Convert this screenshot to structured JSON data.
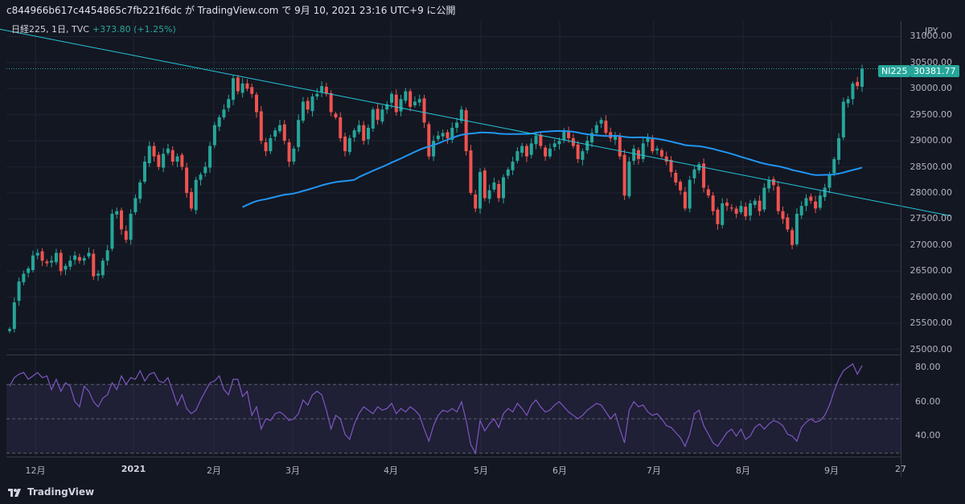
{
  "header": {
    "text": "c844966b617c4454865c7fb221f6dc が TradingView.com で 9月 10, 2021 23:16 UTC+9 に公開"
  },
  "legend": {
    "symbol": "日経225, 1日, TVC",
    "change": "+373.80 (+1.25%)"
  },
  "currency": "JPY",
  "tags": {
    "symbol": "NI225",
    "price": "30381.77"
  },
  "footer": {
    "brand": "TradingView"
  },
  "colors": {
    "up": "#26a69a",
    "down": "#ef5350",
    "ma": "#2196f3",
    "trend": "#26c6da",
    "rsi": "#7e57c2",
    "background": "#131722"
  },
  "chart_data": [
    {
      "type": "candlestick",
      "title": "日経225, 1日, TVC",
      "ylim": [
        24900,
        31300
      ],
      "y_ticks": [
        25000,
        25500,
        26000,
        26500,
        27000,
        27500,
        28000,
        28500,
        29000,
        29500,
        30000,
        30500,
        31000
      ],
      "y_tick_labels": [
        "25000.00",
        "25500.00",
        "26000.00",
        "26500.00",
        "27000.00",
        "27500.00",
        "28000.00",
        "28500.00",
        "29000.00",
        "29500.00",
        "30000.00",
        "30500.00",
        "31000.00"
      ],
      "x_labels": [
        "12月",
        "2021",
        "2月",
        "3月",
        "4月",
        "5月",
        "6月",
        "7月",
        "8月",
        "9月",
        "27"
      ],
      "x_label_pos": [
        44,
        166,
        266,
        364,
        486,
        598,
        696,
        813,
        924,
        1034,
        1120
      ],
      "last_price": 30381.77,
      "candles_close": [
        25390,
        25900,
        26300,
        26450,
        26550,
        26800,
        26850,
        26700,
        26650,
        26700,
        26850,
        26500,
        26600,
        26700,
        26800,
        26700,
        26750,
        26850,
        26400,
        26450,
        26700,
        26900,
        27600,
        27650,
        27300,
        27100,
        27600,
        27900,
        28200,
        28600,
        28900,
        28700,
        28500,
        28750,
        28850,
        28600,
        28700,
        28500,
        28000,
        27700,
        28250,
        28350,
        28500,
        28900,
        29300,
        29450,
        29600,
        29800,
        30200,
        29950,
        30100,
        30000,
        29900,
        29550,
        29000,
        28800,
        29050,
        29200,
        29300,
        29000,
        28600,
        28850,
        29400,
        29750,
        29600,
        29850,
        29900,
        30050,
        29900,
        29550,
        29450,
        29050,
        28800,
        29050,
        29200,
        29300,
        29000,
        29250,
        29600,
        29400,
        29600,
        29700,
        29900,
        29550,
        29800,
        29950,
        29650,
        29750,
        29800,
        29350,
        28700,
        29000,
        29100,
        29150,
        29050,
        29250,
        29350,
        29600,
        28800,
        28000,
        27700,
        28400,
        27900,
        28050,
        28200,
        27900,
        28300,
        28450,
        28600,
        28800,
        28900,
        28700,
        28950,
        29100,
        28900,
        28700,
        28850,
        28950,
        29000,
        29200,
        29050,
        28900,
        28650,
        28800,
        29000,
        29150,
        29300,
        29400,
        29150,
        29050,
        29100,
        28700,
        27950,
        28600,
        28850,
        28650,
        28950,
        29050,
        28800,
        28850,
        28700,
        28600,
        28400,
        28200,
        28050,
        27700,
        28250,
        28450,
        28550,
        28100,
        27950,
        27650,
        27400,
        27800,
        27750,
        27700,
        27600,
        27750,
        27550,
        27800,
        27850,
        27650,
        28100,
        28250,
        28150,
        27650,
        27500,
        27300,
        27000,
        27600,
        27750,
        27900,
        27850,
        27700,
        27950,
        28100,
        28350,
        28650,
        29050,
        29750,
        29800,
        30100,
        30050,
        30381
      ]
    },
    {
      "type": "line",
      "name": "",
      "ylim": [
        28,
        87
      ],
      "y_ticks": [
        40,
        60,
        80
      ],
      "y_tick_labels": [
        "40.00",
        "60.00",
        "80.00"
      ],
      "bands": [
        30,
        50,
        70
      ],
      "values": [
        69,
        74,
        76,
        77,
        73,
        75,
        77,
        74,
        75,
        67,
        73,
        66,
        71,
        69,
        60,
        57,
        69,
        66,
        60,
        57,
        62,
        64,
        71,
        67,
        75,
        70,
        74,
        73,
        78,
        72,
        76,
        77,
        72,
        71,
        74,
        66,
        58,
        64,
        56,
        53,
        55,
        61,
        66,
        71,
        72,
        75,
        67,
        64,
        73,
        73,
        63,
        66,
        52,
        57,
        44,
        50,
        49,
        53,
        54,
        52,
        49,
        50,
        53,
        61,
        58,
        64,
        66,
        64,
        55,
        44,
        52,
        50,
        41,
        38,
        47,
        53,
        57,
        55,
        53,
        57,
        55,
        56,
        59,
        53,
        56,
        54,
        57,
        55,
        52,
        44,
        37,
        46,
        52,
        55,
        54,
        56,
        54,
        60,
        49,
        35,
        30,
        49,
        43,
        47,
        50,
        45,
        53,
        56,
        54,
        59,
        56,
        52,
        58,
        61,
        57,
        54,
        55,
        58,
        60,
        57,
        54,
        52,
        50,
        52,
        55,
        57,
        59,
        58,
        54,
        50,
        53,
        44,
        36,
        55,
        60,
        57,
        58,
        54,
        52,
        53,
        50,
        46,
        45,
        42,
        39,
        34,
        41,
        53,
        55,
        46,
        41,
        36,
        34,
        38,
        42,
        44,
        40,
        44,
        38,
        40,
        45,
        47,
        44,
        47,
        49,
        48,
        46,
        41,
        40,
        37,
        45,
        48,
        50,
        48,
        49,
        52,
        58,
        66,
        73,
        78,
        80,
        82,
        76,
        81
      ]
    }
  ]
}
